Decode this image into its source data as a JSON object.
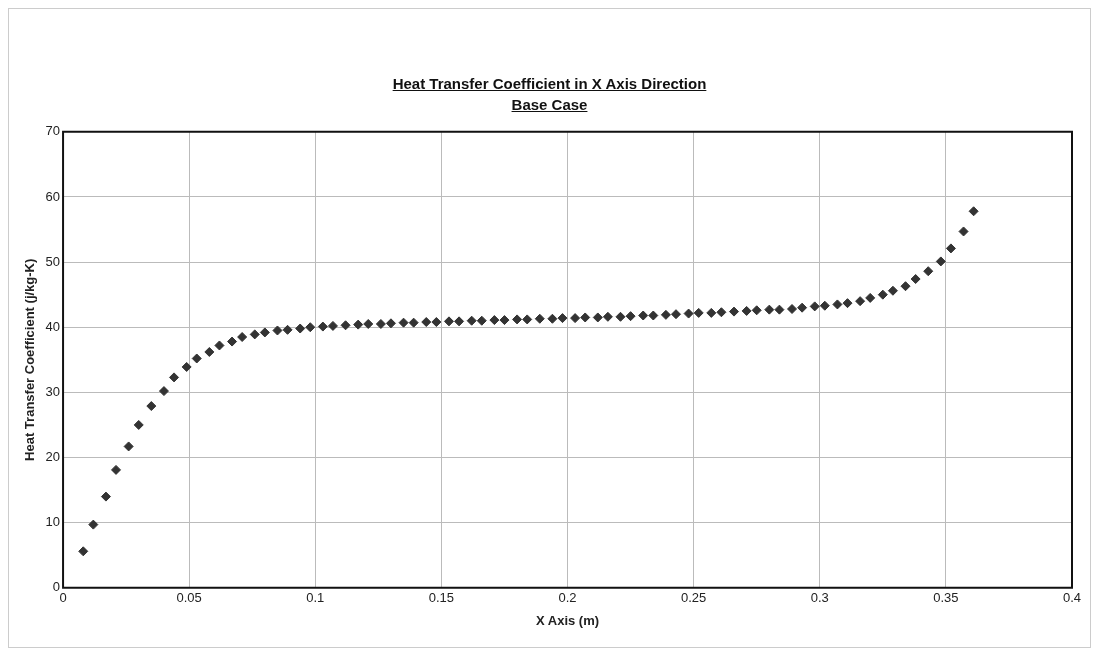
{
  "chart_data": {
    "type": "scatter",
    "title": "Heat Transfer Coefficient in X Axis Direction",
    "subtitle": "Base Case",
    "xlabel": "X Axis (m)",
    "ylabel": "Heat Transfer Coefficient (j/kg-K)",
    "x": [
      0.008,
      0.012,
      0.017,
      0.021,
      0.026,
      0.03,
      0.035,
      0.04,
      0.044,
      0.049,
      0.053,
      0.058,
      0.062,
      0.067,
      0.071,
      0.076,
      0.08,
      0.085,
      0.089,
      0.094,
      0.098,
      0.103,
      0.107,
      0.112,
      0.117,
      0.121,
      0.126,
      0.13,
      0.135,
      0.139,
      0.144,
      0.148,
      0.153,
      0.157,
      0.162,
      0.166,
      0.171,
      0.175,
      0.18,
      0.184,
      0.189,
      0.194,
      0.198,
      0.203,
      0.207,
      0.212,
      0.216,
      0.221,
      0.225,
      0.23,
      0.234,
      0.239,
      0.243,
      0.248,
      0.252,
      0.257,
      0.261,
      0.266,
      0.271,
      0.275,
      0.28,
      0.284,
      0.289,
      0.293,
      0.298,
      0.302,
      0.307,
      0.311,
      0.316,
      0.32,
      0.325,
      0.329,
      0.334,
      0.338,
      0.343,
      0.348,
      0.352,
      0.357,
      0.361
    ],
    "series": [
      {
        "color": "#333333",
        "values": [
          5.6,
          9.7,
          14.0,
          18.1,
          21.7,
          25.0,
          27.9,
          30.2,
          32.3,
          33.9,
          35.2,
          36.2,
          37.2,
          37.8,
          38.5,
          38.9,
          39.2,
          39.5,
          39.6,
          39.8,
          40.0,
          40.1,
          40.2,
          40.3,
          40.4,
          40.5,
          40.5,
          40.6,
          40.7,
          40.7,
          40.8,
          40.8,
          40.9,
          40.9,
          41.0,
          41.0,
          41.1,
          41.1,
          41.2,
          41.2,
          41.3,
          41.3,
          41.4,
          41.4,
          41.5,
          41.5,
          41.6,
          41.6,
          41.7,
          41.8,
          41.8,
          41.9,
          42.0,
          42.1,
          42.2,
          42.2,
          42.3,
          42.4,
          42.5,
          42.6,
          42.7,
          42.7,
          42.8,
          43.0,
          43.2,
          43.3,
          43.5,
          43.7,
          44.0,
          44.5,
          45.0,
          45.6,
          46.3,
          47.4,
          48.6,
          50.1,
          52.1,
          54.7,
          57.8
        ]
      }
    ],
    "xlim": [
      0,
      0.4
    ],
    "xticks": [
      0,
      0.05,
      0.1,
      0.15,
      0.2,
      0.25,
      0.3,
      0.35,
      0.4
    ],
    "ylim": [
      0,
      70
    ],
    "yticks": [
      0,
      10,
      20,
      30,
      40,
      50,
      60,
      70
    ],
    "grid": true,
    "legend": false,
    "marker": "diamond"
  }
}
